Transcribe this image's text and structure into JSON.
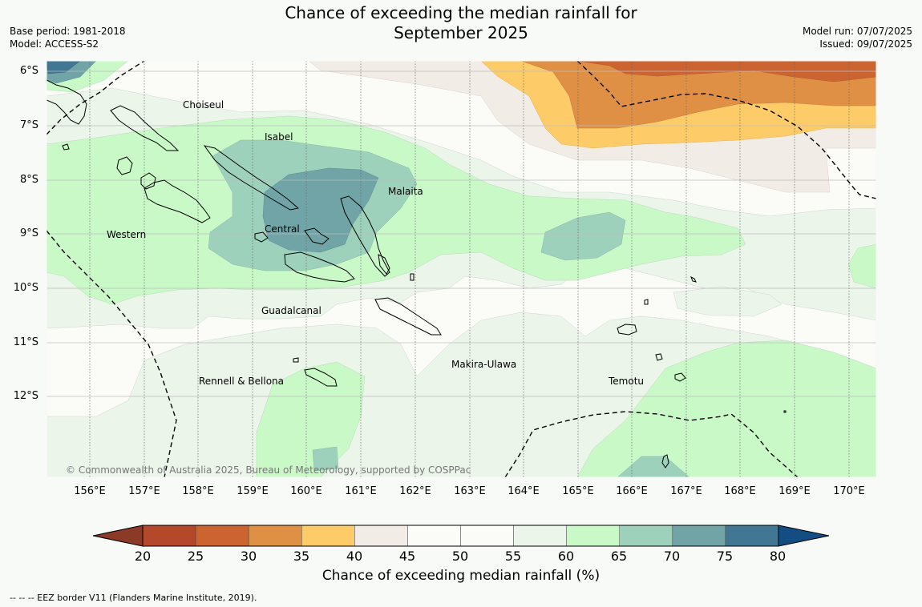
{
  "title_line1": "Chance of exceeding the median rainfall for",
  "title_line2": "September 2025",
  "meta_left": {
    "base_period": "Base period: 1981-2018",
    "model": "Model: ACCESS-S2"
  },
  "meta_right": {
    "model_run": "Model run: 07/07/2025",
    "issued": "Issued: 09/07/2025"
  },
  "latitude_labels": [
    "6°S",
    "7°S",
    "8°S",
    "9°S",
    "10°S",
    "11°S",
    "12°S"
  ],
  "longitude_labels": [
    "156°E",
    "157°E",
    "158°E",
    "159°E",
    "160°E",
    "161°E",
    "162°E",
    "163°E",
    "164°E",
    "165°E",
    "166°E",
    "167°E",
    "168°E",
    "169°E",
    "170°E"
  ],
  "regions": [
    "Choiseul",
    "Isabel",
    "Malaita",
    "Western",
    "Central",
    "Guadalcanal",
    "Rennell & Bellona",
    "Makira-Ulawa",
    "Temotu"
  ],
  "copyright": "© Commonwealth of Australia 2025, Bureau of Meteorology, supported by COSPPac",
  "colorbar": {
    "ticks": [
      "20",
      "25",
      "30",
      "35",
      "40",
      "45",
      "50",
      "55",
      "60",
      "65",
      "70",
      "75",
      "80"
    ],
    "colors": [
      "#b3492a",
      "#cc6432",
      "#e09045",
      "#fdcb67",
      "#f2ece6",
      "#fbfbf8",
      "#fbfbf8",
      "#ebf5ea",
      "#caf9c8",
      "#9dd1bb",
      "#70a4a6",
      "#427794"
    ],
    "under_color": "#8a3a27",
    "over_color": "#134d82",
    "label": "Chance of exceeding median rainfall (%)"
  },
  "footnote": "--  --  -- EEZ border V11 (Flanders Marine Institute, 2019)."
}
